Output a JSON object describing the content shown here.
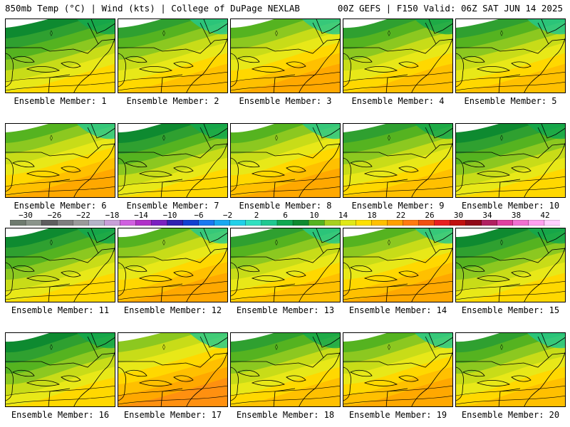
{
  "header": {
    "left": "850mb Temp (°C) | Wind (kts) | College of DuPage NEXLAB",
    "right": "00Z GEFS | F150 Valid: 06Z SAT JUN 14 2025"
  },
  "panels": [
    {
      "label": "Ensemble Member: 1",
      "warmth": 0.3
    },
    {
      "label": "Ensemble Member: 2",
      "warmth": 0.5
    },
    {
      "label": "Ensemble Member: 3",
      "warmth": 0.65
    },
    {
      "label": "Ensemble Member: 4",
      "warmth": 0.45
    },
    {
      "label": "Ensemble Member: 5",
      "warmth": 0.55
    },
    {
      "label": "Ensemble Member: 6",
      "warmth": 0.65
    },
    {
      "label": "Ensemble Member: 7",
      "warmth": 0.3
    },
    {
      "label": "Ensemble Member: 8",
      "warmth": 0.65
    },
    {
      "label": "Ensemble Member: 9",
      "warmth": 0.45
    },
    {
      "label": "Ensemble Member: 10",
      "warmth": 0.3
    },
    {
      "label": "Ensemble Member: 11",
      "warmth": 0.4
    },
    {
      "label": "Ensemble Member: 12",
      "warmth": 0.6
    },
    {
      "label": "Ensemble Member: 13",
      "warmth": 0.55
    },
    {
      "label": "Ensemble Member: 14",
      "warmth": 0.6
    },
    {
      "label": "Ensemble Member: 15",
      "warmth": 0.35
    },
    {
      "label": "Ensemble Member: 16",
      "warmth": 0.4
    },
    {
      "label": "Ensemble Member: 17",
      "warmth": 0.85
    },
    {
      "label": "Ensemble Member: 18",
      "warmth": 0.45
    },
    {
      "label": "Ensemble Member: 19",
      "warmth": 0.65
    },
    {
      "label": "Ensemble Member: 20",
      "warmth": 0.5
    }
  ],
  "colorbar": {
    "tick_labels": [
      "−30",
      "−26",
      "−22",
      "−18",
      "−14",
      "−10",
      "−6",
      "−2",
      "2",
      "6",
      "10",
      "14",
      "18",
      "22",
      "26",
      "30",
      "34",
      "38",
      "42"
    ],
    "colors": [
      "#6e7b6e",
      "#8a948a",
      "#5e5e5e",
      "#7e7e7e",
      "#9a9a9a",
      "#b4b4c8",
      "#c8a0d8",
      "#d060e0",
      "#b030c8",
      "#7a20c0",
      "#3020b0",
      "#1040d0",
      "#1878f0",
      "#18a8f0",
      "#20d0e8",
      "#30e0c0",
      "#20c890",
      "#10a850",
      "#0e8a30",
      "#55b320",
      "#a8d020",
      "#e0e818",
      "#ffe000",
      "#ffc000",
      "#ffa000",
      "#ff7a10",
      "#f05010",
      "#e82020",
      "#c01010",
      "#900818",
      "#b02060",
      "#e040a0",
      "#f070d0",
      "#ffa0f0",
      "#ffd0ff"
    ]
  }
}
